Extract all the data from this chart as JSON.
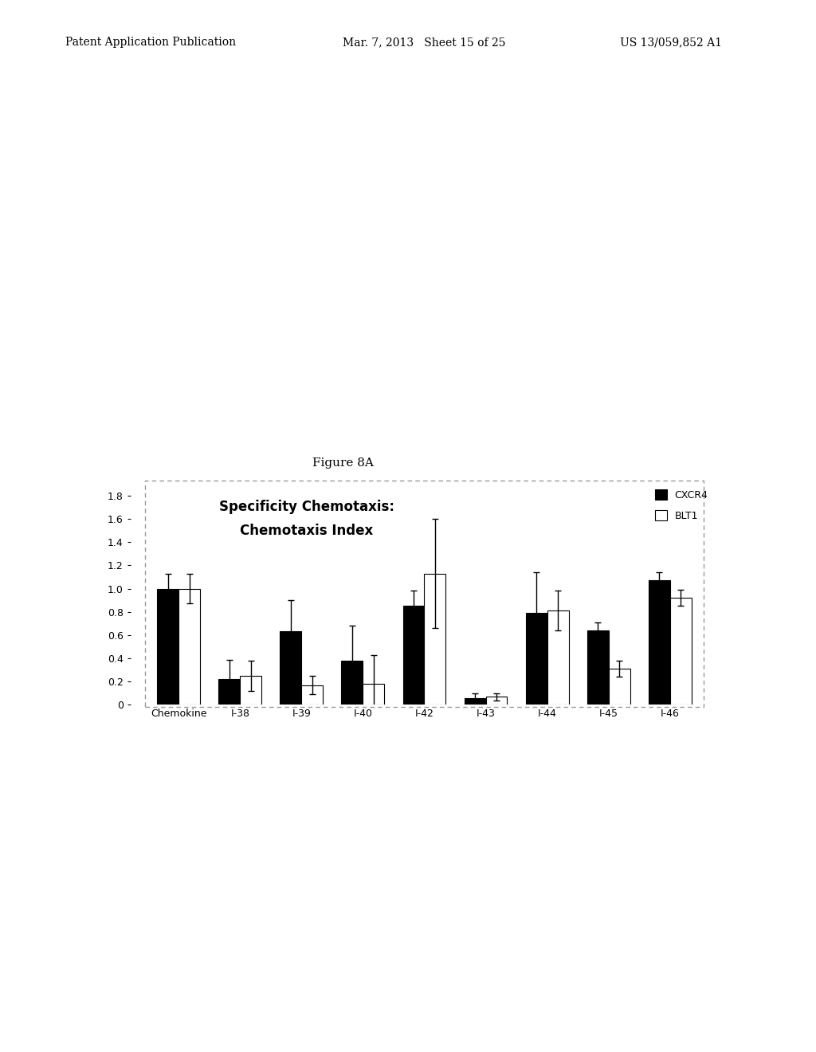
{
  "title_line1": "Specificity Chemotaxis:",
  "title_line2": "Chemotaxis Index",
  "figure_label": "Figure 8A",
  "categories": [
    "Chemokine",
    "I-38",
    "I-39",
    "I-40",
    "I-42",
    "I-43",
    "I-44",
    "I-45",
    "I-46"
  ],
  "cxcr4_values": [
    1.0,
    0.22,
    0.63,
    0.38,
    0.85,
    0.06,
    0.79,
    0.64,
    1.07
  ],
  "blt1_values": [
    1.0,
    0.25,
    0.17,
    0.18,
    1.13,
    0.07,
    0.81,
    0.31,
    0.92
  ],
  "cxcr4_errors": [
    0.13,
    0.17,
    0.27,
    0.3,
    0.13,
    0.04,
    0.35,
    0.07,
    0.07
  ],
  "blt1_errors": [
    0.13,
    0.13,
    0.08,
    0.25,
    0.47,
    0.03,
    0.17,
    0.07,
    0.07
  ],
  "cxcr4_color": "#000000",
  "blt1_color": "#ffffff",
  "bar_edge_color": "#000000",
  "ylim": [
    0,
    1.9
  ],
  "yticks": [
    0,
    0.2,
    0.4,
    0.6,
    0.8,
    1.0,
    1.2,
    1.4,
    1.6,
    1.8
  ],
  "bar_width": 0.35,
  "legend_cxcr4": "CXCR4",
  "legend_blt1": "BLT1",
  "background_color": "#ffffff"
}
